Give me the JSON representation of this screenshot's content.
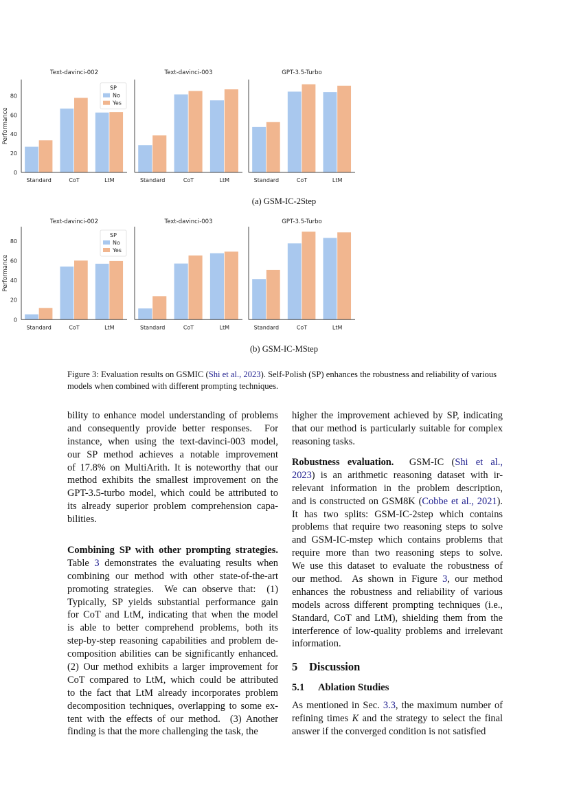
{
  "chart_data": [
    {
      "type": "bar",
      "subcaption": "(a) GSM-IC-2Step",
      "ylabel": "Performance",
      "ylim": [
        0,
        97
      ],
      "yticks": [
        "0",
        "20",
        "40",
        "60",
        "80"
      ],
      "legend": {
        "title": "SP",
        "entries": [
          "No",
          "Yes"
        ],
        "placement": "top-right of first panel"
      },
      "categories": [
        "Standard",
        "CoT",
        "LtM"
      ],
      "colors": {
        "No": "#a9c8ee",
        "Yes": "#f1b68f"
      },
      "panels": [
        {
          "title": "Text-davinci-002",
          "series": [
            {
              "name": "No",
              "values": [
                26.8,
                66.6,
                62.5
              ]
            },
            {
              "name": "Yes",
              "values": [
                33.5,
                77.8,
                63.0
              ]
            }
          ]
        },
        {
          "title": "Text-davinci-003",
          "series": [
            {
              "name": "No",
              "values": [
                28.5,
                81.4,
                75.2
              ]
            },
            {
              "name": "Yes",
              "values": [
                38.6,
                85.0,
                86.7
              ]
            }
          ]
        },
        {
          "title": "GPT-3.5-Turbo",
          "series": [
            {
              "name": "No",
              "values": [
                47.4,
                84.3,
                83.8
              ]
            },
            {
              "name": "Yes",
              "values": [
                52.5,
                92.0,
                90.5
              ]
            }
          ]
        }
      ]
    },
    {
      "type": "bar",
      "subcaption": "(b) GSM-IC-MStep",
      "ylabel": "Performance",
      "ylim": [
        0,
        94.6
      ],
      "yticks": [
        "0",
        "20",
        "40",
        "60",
        "80"
      ],
      "legend": {
        "title": "SP",
        "entries": [
          "No",
          "Yes"
        ],
        "placement": "top-right of first panel"
      },
      "categories": [
        "Standard",
        "CoT",
        "LtM"
      ],
      "colors": {
        "No": "#a9c8ee",
        "Yes": "#f1b68f"
      },
      "panels": [
        {
          "title": "Text-davinci-002",
          "series": [
            {
              "name": "No",
              "values": [
                5.4,
                54.0,
                56.9
              ]
            },
            {
              "name": "Yes",
              "values": [
                11.9,
                60.1,
                59.7
              ]
            }
          ]
        },
        {
          "title": "Text-davinci-003",
          "series": [
            {
              "name": "No",
              "values": [
                11.4,
                57.1,
                67.6
              ]
            },
            {
              "name": "Yes",
              "values": [
                23.8,
                65.3,
                69.2
              ]
            }
          ]
        },
        {
          "title": "GPT-3.5-Turbo",
          "series": [
            {
              "name": "No",
              "values": [
                41.3,
                77.6,
                83.2
              ]
            },
            {
              "name": "Yes",
              "values": [
                50.6,
                89.5,
                88.8
              ]
            }
          ]
        }
      ]
    }
  ],
  "caption": {
    "prefix": "Figure 3: Evaluation results on GSMIC (",
    "cite": "Shi et al., 2023",
    "suffix": "). Self-Polish (SP) enhances the robustness and reliability of various models when combined with different prompting techniques."
  },
  "left_column": [
    {
      "top": 596,
      "lines": [
        [
          "bility to enhance model understanding of problems"
        ],
        [
          "and consequently provide better responses.  For"
        ],
        [
          "instance, when using the text-davinci-003 model,"
        ],
        [
          "our SP method achieves a notable improvement"
        ],
        [
          "of 17.8% on MultiArith. It is noteworthy that our"
        ],
        [
          "method exhibits the smallest improvement on the"
        ],
        [
          "GPT-3.5-turbo model, which could be attributed to"
        ],
        [
          "its already superior problem comprehension capa-"
        ],
        [
          "bilities."
        ]
      ]
    },
    {
      "top": 792,
      "lines": [
        [
          {
            "bold": "Combining SP with other prompting strategies."
          }
        ],
        [
          "Table ",
          {
            "link": "3"
          },
          " demonstrates the evaluating results when"
        ],
        [
          "combining our method with other state-of-the-art"
        ],
        [
          "promoting strategies.  We can observe that:  (1)"
        ],
        [
          "Typically, SP yields substantial performance gain"
        ],
        [
          "for CoT and LtM, indicating that when the model"
        ],
        [
          "is able to better comprehend problems, both its"
        ],
        [
          "step-by-step reasoning capabilities and problem de-"
        ],
        [
          "composition abilities can be significantly enhanced."
        ],
        [
          "(2) Our method exhibits a larger improvement for"
        ],
        [
          "CoT compared to LtM, which could be attributed"
        ],
        [
          "to the fact that LtM already incorporates problem"
        ],
        [
          "decomposition techniques, overlapping to some ex-"
        ],
        [
          "tent with the effects of our method.  (3) Another"
        ],
        [
          "finding is that the more challenging the task, the"
        ]
      ]
    }
  ],
  "right_column": [
    {
      "top": 596,
      "lines": [
        [
          "higher the improvement achieved by SP, indicating"
        ],
        [
          "that our method is particularly suitable for complex"
        ],
        [
          "reasoning tasks."
        ]
      ]
    },
    {
      "top": 664,
      "lines": [
        [
          {
            "bold": "Robustness evaluation."
          },
          "  GSM-IC (",
          {
            "link": "Shi et al.,"
          }
        ],
        [
          {
            "link": "2023"
          },
          ") is an arithmetic reasoning dataset with ir-"
        ],
        [
          "relevant information in the problem description,"
        ],
        [
          "and is constructed on GSM8K (",
          {
            "link": "Cobbe et al., 2021"
          },
          ")."
        ],
        [
          "It has two splits: GSM-IC-2step which contains"
        ],
        [
          "problems that require two reasoning steps to solve"
        ],
        [
          "and GSM-IC-mstep which contains problems that"
        ],
        [
          "require more than two reasoning steps to solve."
        ],
        [
          "We use this dataset to evaluate the robustness of"
        ],
        [
          "our method.  As shown in Figure ",
          {
            "link": "3"
          },
          ", our method"
        ],
        [
          "enhances the robustness and reliability of various"
        ],
        [
          "models across different prompting techniques (i.e.,"
        ],
        [
          "Standard, CoT and LtM), shielding them from the"
        ],
        [
          "interference of low-quality problems and irrelevant"
        ],
        [
          "information."
        ]
      ]
    },
    {
      "top": 1018,
      "lines": [
        [
          "As mentioned in Sec. ",
          {
            "link": "3.3"
          },
          ", the maximum number of"
        ],
        [
          "refining times ",
          {
            "italic": "K"
          },
          " and the strategy to select the final"
        ],
        [
          "answer if the converged condition is not satisfied"
        ]
      ]
    }
  ],
  "section": {
    "number": "5",
    "title": "Discussion"
  },
  "subsection": {
    "number": "5.1",
    "title": "Ablation Studies"
  }
}
